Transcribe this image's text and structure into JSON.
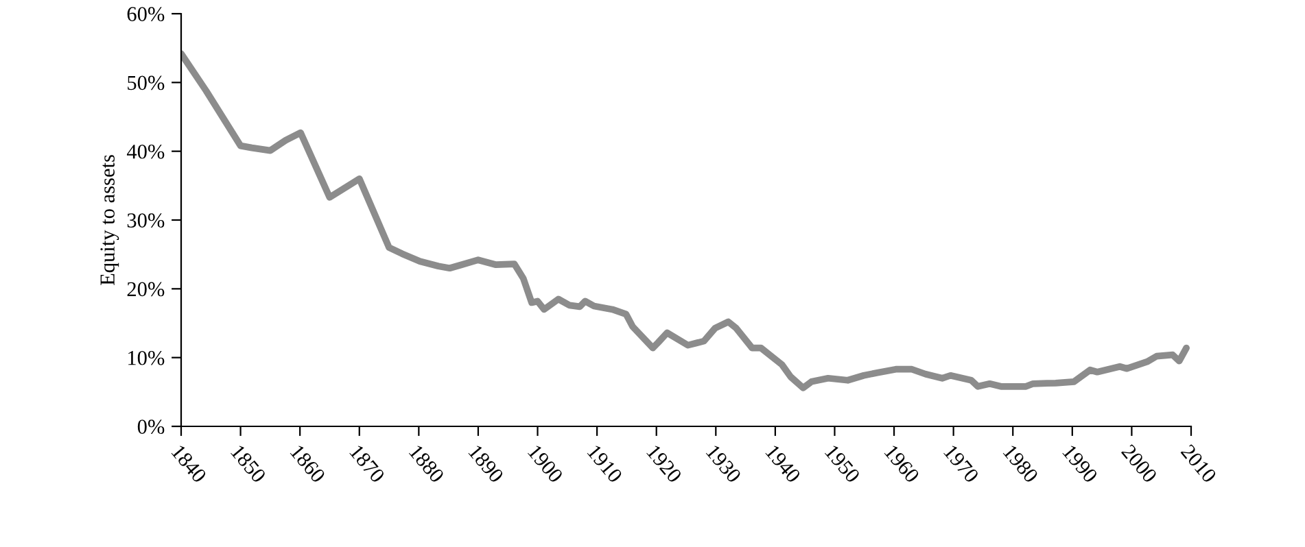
{
  "chart_data": {
    "type": "line",
    "ylabel": "Equity to assets",
    "x": [
      1840,
      1844.2,
      1850,
      1851.9,
      1855,
      1857.6,
      1860.1,
      1865,
      1870,
      1875,
      1877.2,
      1880.2,
      1883.3,
      1885.2,
      1887.2,
      1890,
      1893,
      1896.1,
      1897.6,
      1899,
      1900,
      1901.1,
      1903.5,
      1905.4,
      1907.1,
      1908,
      1909.5,
      1912.6,
      1914.9,
      1916,
      1919.4,
      1920.3,
      1921.8,
      1925.3,
      1928,
      1929.9,
      1932.1,
      1933.4,
      1936.1,
      1937.6,
      1941.1,
      1942.6,
      1944.7,
      1946.1,
      1948.9,
      1952.2,
      1954.9,
      1957.2,
      1960.3,
      1963,
      1965.3,
      1968.1,
      1969.5,
      1973,
      1974.1,
      1976.1,
      1978,
      1982.2,
      1983.4,
      1987.2,
      1990.3,
      1993,
      1994.2,
      1998,
      1999.2,
      2002.6,
      2004.2,
      2006.9,
      2008,
      2009.2
    ],
    "series": [
      {
        "color": "#8c8c8c",
        "values": [
          54.2,
          48.8,
          40.8,
          40.5,
          40.1,
          41.6,
          42.7,
          33.3,
          36,
          26,
          25.1,
          24,
          23.3,
          23,
          23.5,
          24.2,
          23.5,
          23.6,
          21.5,
          18,
          18.2,
          17,
          18.5,
          17.6,
          17.4,
          18.2,
          17.5,
          17,
          16.3,
          14.5,
          11.4,
          12.2,
          13.6,
          11.8,
          12.4,
          14.3,
          15.2,
          14.3,
          11.4,
          11.4,
          9,
          7.2,
          5.6,
          6.5,
          7,
          6.7,
          7.4,
          7.8,
          8.3,
          8.3,
          7.6,
          7,
          7.4,
          6.7,
          5.8,
          6.2,
          5.8,
          5.8,
          6.2,
          6.3,
          6.5,
          8.2,
          7.9,
          8.7,
          8.4,
          9.4,
          10.2,
          10.4,
          9.5,
          11.4
        ]
      }
    ],
    "xlim": [
      1840,
      2010
    ],
    "ylim": [
      0,
      60
    ],
    "xticks": [
      1840,
      1850,
      1860,
      1870,
      1880,
      1890,
      1900,
      1910,
      1920,
      1930,
      1940,
      1950,
      1960,
      1970,
      1980,
      1990,
      2000,
      2010
    ],
    "yticks": [
      {
        "value": 0,
        "label": "0%"
      },
      {
        "value": 10,
        "label": "10%"
      },
      {
        "value": 20,
        "label": "20%"
      },
      {
        "value": 30,
        "label": "30%"
      },
      {
        "value": 40,
        "label": "40%"
      },
      {
        "value": 50,
        "label": "50%"
      },
      {
        "value": 60,
        "label": "60%"
      }
    ],
    "grid": false,
    "legend": false,
    "marker": "none",
    "line_style": "solid"
  }
}
